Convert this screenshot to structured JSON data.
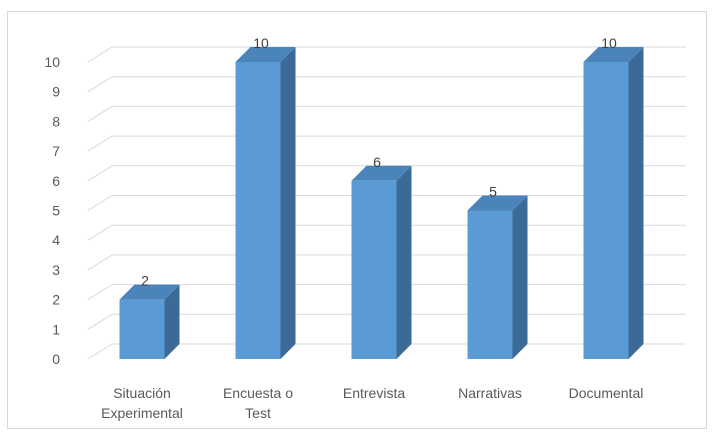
{
  "chart_data": {
    "type": "bar",
    "categories": [
      [
        "Situación",
        "Experimental"
      ],
      [
        "Encuesta o",
        "Test"
      ],
      [
        "Entrevista"
      ],
      [
        "Narrativas"
      ],
      [
        "Documental"
      ]
    ],
    "values": [
      2,
      10,
      6,
      5,
      10
    ],
    "title": "",
    "xlabel": "",
    "ylabel": "",
    "ylim": [
      0,
      10
    ],
    "yticks": [
      "0",
      "1",
      "2",
      "3",
      "4",
      "5",
      "6",
      "7",
      "8",
      "9",
      "10"
    ],
    "grid": true,
    "legend": "none",
    "style": "3d-column",
    "colors": {
      "front": "#5b9bd5",
      "side": "#3a6a95",
      "top": "#4a84ba",
      "grid": "#d9d9d9",
      "text": "#595959"
    }
  }
}
